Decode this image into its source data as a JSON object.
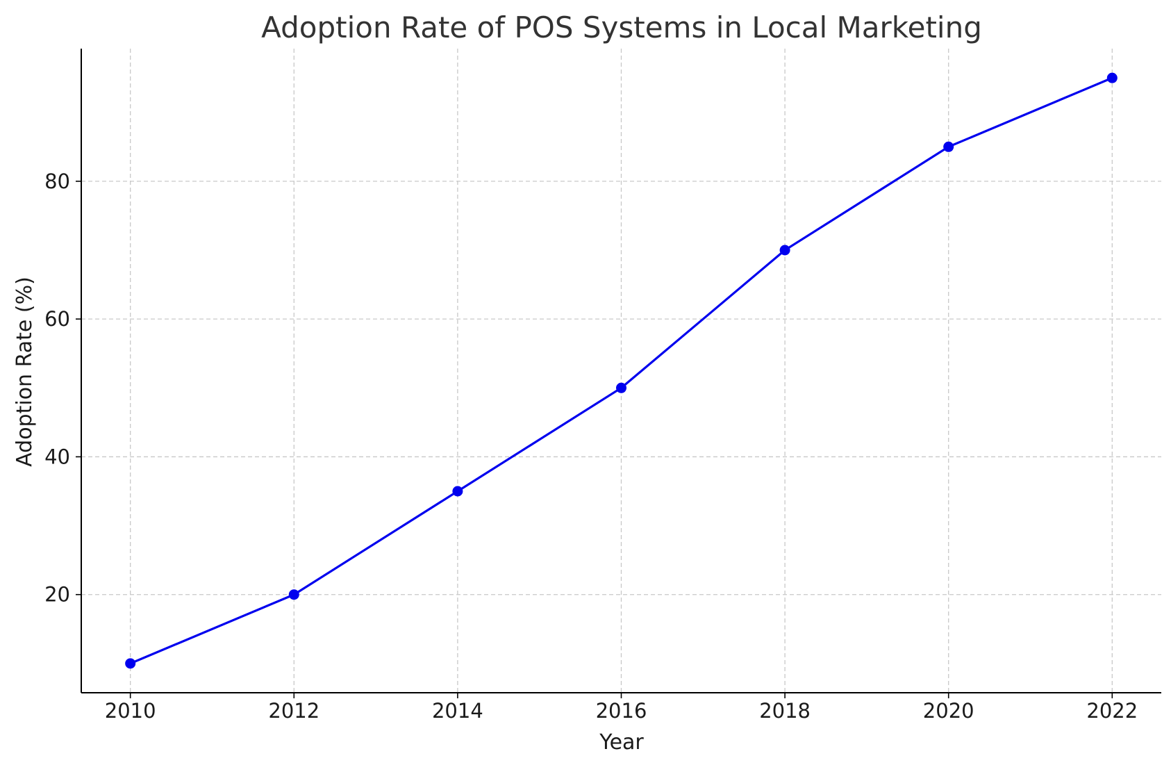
{
  "chart_data": {
    "type": "line",
    "title": "Adoption Rate of POS Systems in Local Marketing",
    "xlabel": "Year",
    "ylabel": "Adoption Rate (%)",
    "x": [
      2010,
      2012,
      2014,
      2016,
      2018,
      2020,
      2022
    ],
    "series": [
      {
        "values": [
          10,
          20,
          35,
          50,
          70,
          85,
          95
        ],
        "color": "#0000ee",
        "marker": "circle"
      }
    ],
    "xticks": [
      "2010",
      "2012",
      "2014",
      "2016",
      "2018",
      "2020",
      "2022"
    ],
    "yticks": [
      20,
      40,
      60,
      80
    ],
    "xlim": [
      2009.4,
      2022.6
    ],
    "ylim": [
      5.75,
      99.25
    ],
    "grid": true,
    "legend": "none"
  }
}
